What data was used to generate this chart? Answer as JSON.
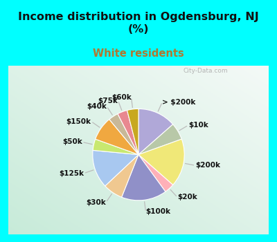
{
  "title": "Income distribution in Ogdensburg, NJ\n(%)",
  "subtitle": "White residents",
  "title_color": "#111111",
  "subtitle_color": "#b07830",
  "bg_cyan": "#00ffff",
  "labels": [
    "> $200k",
    "$10k",
    "$200k",
    "$20k",
    "$100k",
    "$30k",
    "$125k",
    "$50k",
    "$150k",
    "$40k",
    "$75k",
    "$60k"
  ],
  "sizes": [
    13.5,
    6.0,
    17.0,
    3.5,
    16.0,
    7.0,
    13.5,
    4.0,
    8.5,
    3.5,
    3.5,
    4.0
  ],
  "colors": [
    "#b0a8d8",
    "#b8c8a8",
    "#f0e878",
    "#ffb0b8",
    "#9090c8",
    "#f0c890",
    "#a8c8f0",
    "#c8e870",
    "#f0a840",
    "#c8b898",
    "#e88890",
    "#c8a820"
  ],
  "startangle": 90,
  "wedge_edge_color": "#ffffff",
  "wedge_linewidth": 0.8,
  "label_fontsize": 7.5,
  "line_color": "#bbbbbb",
  "watermark": "City-Data.com",
  "title_fontsize": 11.5,
  "subtitle_fontsize": 10.5
}
